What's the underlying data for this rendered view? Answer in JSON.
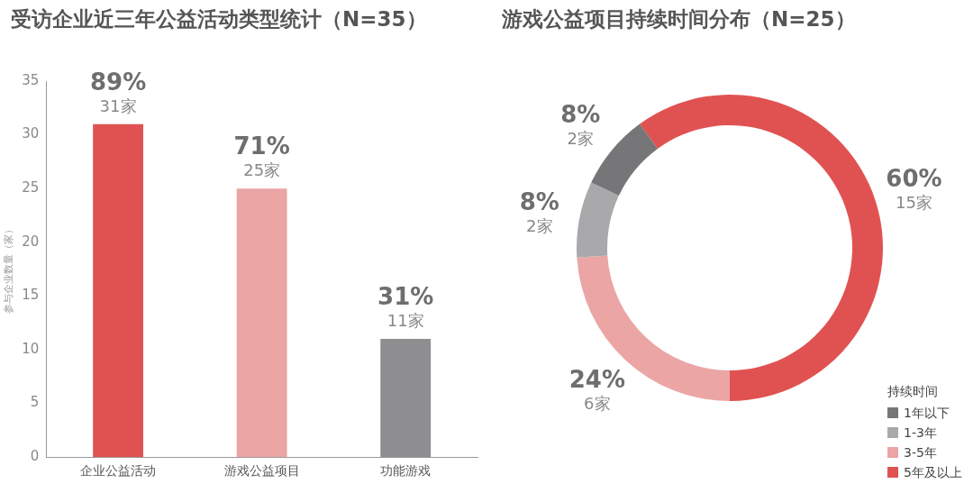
{
  "chart_data": [
    {
      "type": "bar",
      "title": "受访企业近三年公益活动类型统计（N=35）",
      "ylabel": "参与企业数量（家）",
      "categories": [
        "企业公益活动",
        "游戏公益项目",
        "功能游戏"
      ],
      "values": [
        31,
        25,
        11
      ],
      "colors": [
        "#e05252",
        "#eba5a5",
        "#8e8e90"
      ],
      "value_labels": [
        "89%\n31家",
        "71%\n25家",
        "31%\n11家"
      ],
      "ylim": [
        0,
        35
      ],
      "yticks": [
        0,
        5,
        10,
        15,
        20,
        25,
        30,
        35
      ],
      "grid": false,
      "legend": false
    },
    {
      "type": "donut",
      "title": "游戏公益项目持续时间分布（N=25）",
      "legend_title": "持续时间",
      "categories": [
        "1年以下",
        "1-3年",
        "3-5年",
        "5年及以上"
      ],
      "values": [
        2,
        2,
        6,
        15
      ],
      "colors": [
        "#767678",
        "#a9a9ab",
        "#eba5a5",
        "#e05252"
      ],
      "value_labels": [
        "8%\n2家",
        "8%\n2家",
        "24%\n6家",
        "60%\n15家"
      ],
      "legend": "bottom right"
    }
  ]
}
